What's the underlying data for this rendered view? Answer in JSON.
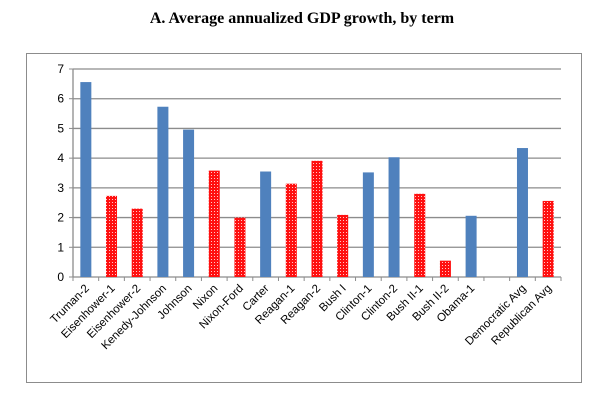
{
  "chart_data": {
    "type": "bar",
    "title": "A. Average annualized GDP growth, by term",
    "xlabel": "",
    "ylabel": "",
    "ylim": [
      0,
      7
    ],
    "yticks": [
      "0",
      "1",
      "2",
      "3",
      "4",
      "5",
      "6",
      "7"
    ],
    "grid": true,
    "legend": "none",
    "categories": [
      "Truman-2",
      "Eisenhower-1",
      "Eisenhower-2",
      "Kenedy-Johnson",
      "Johnson",
      "Nixon",
      "Nixon-Ford",
      "Carter",
      "Reagan-1",
      "Reagan-2",
      "Bush I",
      "Clinton-1",
      "Clinton-2",
      "Bush II-1",
      "Bush II-2",
      "Obama-1",
      "",
      "Democratic Avg",
      "Republican Avg"
    ],
    "values": [
      6.56,
      2.73,
      2.3,
      5.73,
      4.96,
      3.58,
      2.0,
      3.55,
      3.14,
      3.91,
      2.09,
      3.52,
      4.03,
      2.8,
      0.55,
      2.06,
      null,
      4.34,
      2.56
    ],
    "party": [
      "D",
      "R",
      "R",
      "D",
      "D",
      "R",
      "R",
      "D",
      "R",
      "R",
      "R",
      "D",
      "D",
      "R",
      "R",
      "D",
      "",
      "D",
      "R"
    ],
    "colors": {
      "D": "#4f81bd",
      "R": "#ff0000"
    }
  }
}
